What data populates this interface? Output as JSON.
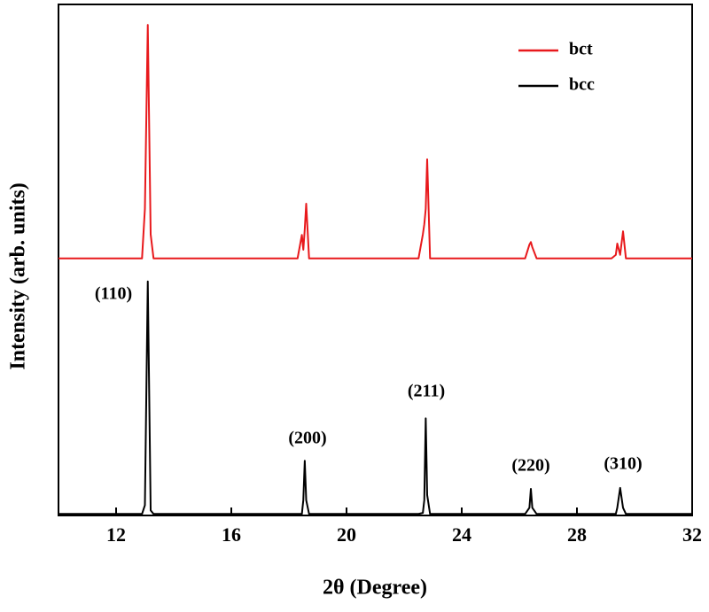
{
  "chart_data": {
    "type": "line",
    "xlabel": "2θ (Degree)",
    "ylabel": "Intensity (arb. units)",
    "x": [
      10,
      12.9,
      13.0,
      13.1,
      13.2,
      13.3,
      18.3,
      18.45,
      18.5,
      18.55,
      18.6,
      18.7,
      22.5,
      22.65,
      22.7,
      22.75,
      22.8,
      22.9,
      26.2,
      26.35,
      26.4,
      26.45,
      26.6,
      29.2,
      29.35,
      29.4,
      29.5,
      29.6,
      29.7,
      32
    ],
    "series": [
      {
        "name": "bct",
        "color": "#e8191c",
        "values": [
          50.3,
          50.3,
          60,
          96,
          55,
          50.3,
          50.3,
          54.9,
          52,
          56,
          61,
          50.3,
          50.3,
          55,
          57,
          60,
          69.7,
          50.3,
          50.3,
          53,
          53.5,
          52.5,
          50.3,
          50.3,
          51,
          53.2,
          51,
          55.6,
          50.3,
          50.3
        ]
      },
      {
        "name": "bcc",
        "color": "#000000",
        "values": [
          0.3,
          0.3,
          2,
          45.8,
          1,
          0.3,
          0.3,
          0.3,
          3,
          10.7,
          3,
          0.3,
          0.3,
          0.5,
          3,
          19,
          4,
          0.3,
          0.3,
          1.5,
          5.2,
          1.5,
          0.3,
          0.3,
          0.3,
          1.5,
          5.4,
          1.5,
          0.3,
          0.3
        ]
      }
    ],
    "annotations": [
      "(110)",
      "(200)",
      "(211)",
      "(220)",
      "(310)"
    ],
    "xlim": [
      10,
      32
    ],
    "xticks": [
      12,
      16,
      20,
      24,
      28,
      32
    ],
    "ylim": [
      0,
      100
    ],
    "legend": "upper right"
  }
}
